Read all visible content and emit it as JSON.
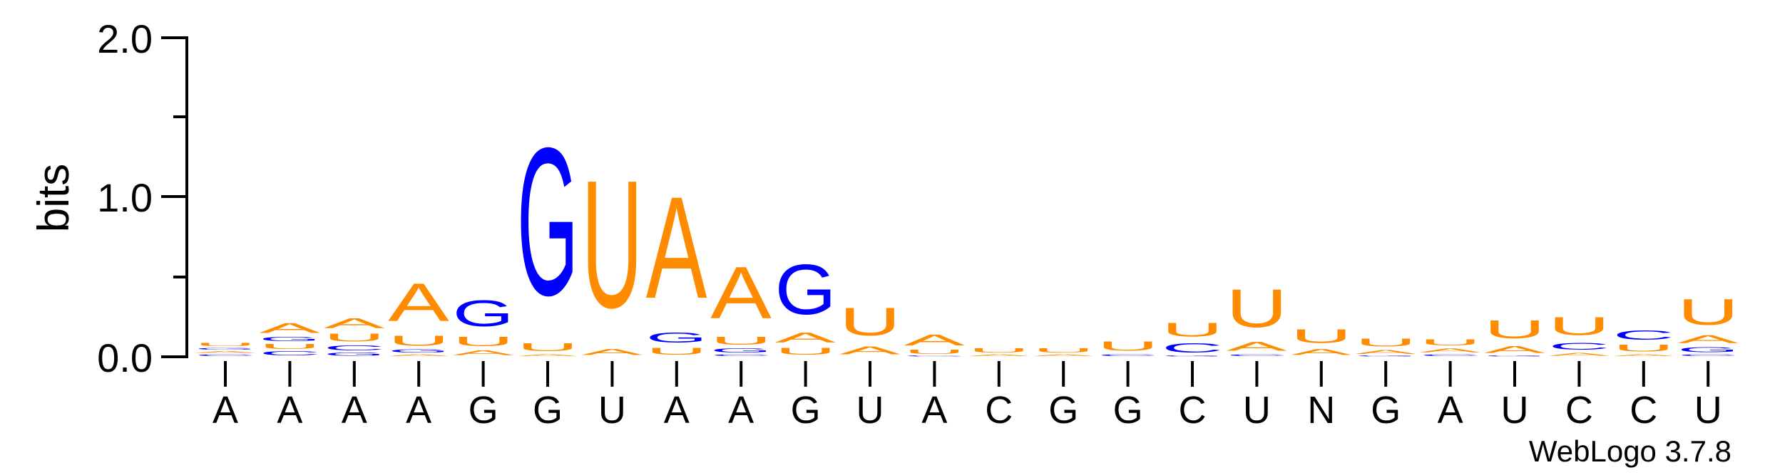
{
  "chart_data": {
    "type": "sequence-logo",
    "ylabel": "bits",
    "ylim": [
      0,
      2.0
    ],
    "yticks": [
      "0.0",
      "1.0",
      "2.0"
    ],
    "positions": [
      "A",
      "A",
      "A",
      "A",
      "G",
      "G",
      "U",
      "A",
      "A",
      "G",
      "U",
      "A",
      "C",
      "G",
      "G",
      "C",
      "U",
      "N",
      "G",
      "A",
      "U",
      "C",
      "C",
      "U"
    ],
    "colors": {
      "A": "#ff8c00",
      "U": "#ff8c00",
      "G": "#0000ff",
      "C": "#0000ff"
    },
    "stacks": [
      [
        [
          "C",
          0.02
        ],
        [
          "A",
          0.02
        ],
        [
          "G",
          0.02
        ],
        [
          "U",
          0.03
        ]
      ],
      [
        [
          "C",
          0.04
        ],
        [
          "U",
          0.05
        ],
        [
          "G",
          0.04
        ],
        [
          "A",
          0.1
        ]
      ],
      [
        [
          "G",
          0.03
        ],
        [
          "C",
          0.05
        ],
        [
          "U",
          0.08
        ],
        [
          "A",
          0.1
        ]
      ],
      [
        [
          "A",
          0.02
        ],
        [
          "G",
          0.03
        ],
        [
          "U",
          0.1
        ],
        [
          "A",
          0.38
        ]
      ],
      [
        [
          "A",
          0.05
        ],
        [
          "U",
          0.09
        ],
        [
          "G",
          0.26
        ]
      ],
      [
        [
          "A",
          0.02
        ],
        [
          "U",
          0.08
        ],
        [
          "G",
          1.48
        ]
      ],
      [
        [
          "A",
          0.06
        ],
        [
          "U",
          1.28
        ]
      ],
      [
        [
          "U",
          0.07
        ],
        [
          "G",
          0.1
        ],
        [
          "A",
          1.02
        ]
      ],
      [
        [
          "C",
          0.02
        ],
        [
          "G",
          0.04
        ],
        [
          "U",
          0.08
        ],
        [
          "A",
          0.52
        ]
      ],
      [
        [
          "U",
          0.07
        ],
        [
          "A",
          0.1
        ],
        [
          "G",
          0.5
        ]
      ],
      [
        [
          "A",
          0.08
        ],
        [
          "U",
          0.28
        ]
      ],
      [
        [
          "C",
          0.01
        ],
        [
          "U",
          0.04
        ],
        [
          "A",
          0.11
        ]
      ],
      [
        [
          "A",
          0.02
        ],
        [
          "U",
          0.04
        ]
      ],
      [
        [
          "A",
          0.02
        ],
        [
          "U",
          0.04
        ]
      ],
      [
        [
          "C",
          0.02
        ],
        [
          "U",
          0.09
        ]
      ],
      [
        [
          "G",
          0.01
        ],
        [
          "C",
          0.09
        ],
        [
          "U",
          0.14
        ]
      ],
      [
        [
          "C",
          0.02
        ],
        [
          "A",
          0.09
        ],
        [
          "U",
          0.38
        ]
      ],
      [
        [
          "A",
          0.06
        ],
        [
          "U",
          0.14
        ]
      ],
      [
        [
          "G",
          0.01
        ],
        [
          "A",
          0.04
        ],
        [
          "U",
          0.08
        ]
      ],
      [
        [
          "C",
          0.02
        ],
        [
          "A",
          0.04
        ],
        [
          "U",
          0.06
        ]
      ],
      [
        [
          "G",
          0.01
        ],
        [
          "A",
          0.07
        ],
        [
          "U",
          0.18
        ]
      ],
      [
        [
          "A",
          0.03
        ],
        [
          "C",
          0.07
        ],
        [
          "U",
          0.18
        ]
      ],
      [
        [
          "A",
          0.02
        ],
        [
          "U",
          0.07
        ],
        [
          "C",
          0.09
        ]
      ],
      [
        [
          "C",
          0.02
        ],
        [
          "G",
          0.05
        ],
        [
          "A",
          0.08
        ],
        [
          "U",
          0.26
        ]
      ]
    ]
  },
  "footer": "WebLogo 3.7.8"
}
